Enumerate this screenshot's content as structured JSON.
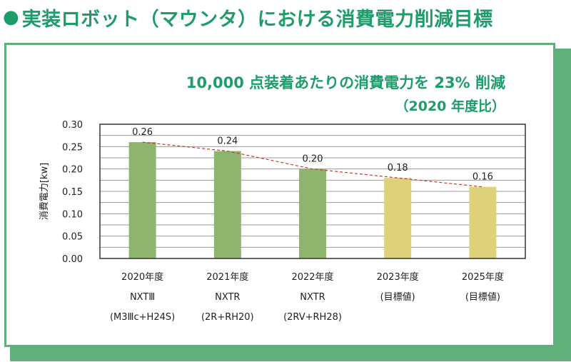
{
  "header": {
    "bullet": "●",
    "title": "実装ロボット（マウンタ）における消費電力削減目標"
  },
  "subtitle": {
    "line1": "10,000 点装着あたりの消費電力を 23% 削減",
    "line2": "（2020 年度比）"
  },
  "colors": {
    "accent": "#1e9c6a",
    "frame": "#5fb07a",
    "bar_actual": "#8db56e",
    "bar_target": "#ddd27a",
    "trend_line": "#c0392b"
  },
  "chart_data": {
    "type": "bar",
    "ylabel": "消費電力[kw]",
    "ylim": [
      0,
      0.3
    ],
    "y_ticks": [
      "0.00",
      "0.05",
      "0.10",
      "0.15",
      "0.20",
      "0.25",
      "0.30"
    ],
    "grid": true,
    "categories": [
      [
        "2020年度",
        "NXTⅢ",
        "(M3Ⅲc+H24S)"
      ],
      [
        "2021年度",
        "NXTR",
        "(2R+RH20)"
      ],
      [
        "2022年度",
        "NXTR",
        "(2RV+RH28)"
      ],
      [
        "2023年度",
        "(目標値)"
      ],
      [
        "2025年度",
        "(目標値)"
      ]
    ],
    "values": [
      0.26,
      0.24,
      0.2,
      0.18,
      0.16
    ],
    "value_labels": [
      "0.26",
      "0.24",
      "0.20",
      "0.18",
      "0.16"
    ],
    "bar_kind": [
      "actual",
      "actual",
      "actual",
      "target",
      "target"
    ],
    "trend_line": "dashed"
  }
}
